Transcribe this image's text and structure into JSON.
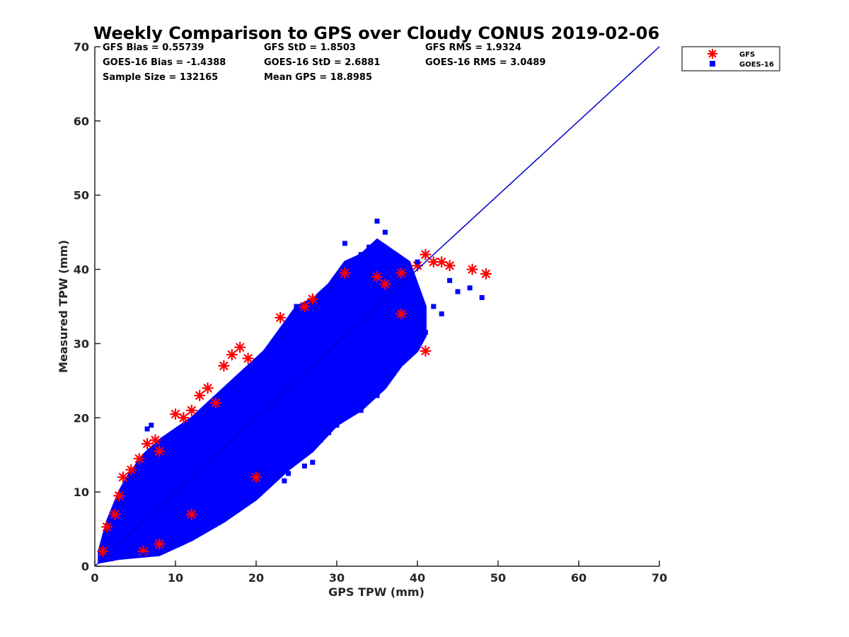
{
  "chart_data": {
    "type": "scatter",
    "title": "Weekly Comparison to GPS over Cloudy CONUS 2019-02-06",
    "xlabel": "GPS TPW (mm)",
    "ylabel": "Measured TPW (mm)",
    "xlim": [
      0,
      70
    ],
    "ylim": [
      0,
      70
    ],
    "xticks": [
      "0",
      "10",
      "20",
      "30",
      "40",
      "50",
      "60",
      "70"
    ],
    "yticks": [
      "0",
      "10",
      "20",
      "30",
      "40",
      "50",
      "60",
      "70"
    ],
    "grid": false,
    "legend_position": "outside top-right",
    "stats": [
      "GFS Bias = 0.55739",
      "GFS StD = 1.8503",
      "GFS RMS = 1.9324",
      "GOES-16 Bias = -1.4388",
      "GOES-16 StD = 2.6881",
      "GOES-16 RMS = 3.0489",
      "Sample Size = 132165",
      "Mean GPS = 18.8985"
    ],
    "reference_line": {
      "x": [
        0,
        70
      ],
      "y": [
        0,
        70
      ],
      "color": "#0000cc"
    },
    "series": [
      {
        "name": "GFS",
        "marker": "asterisk",
        "color": "#ff0000",
        "points": [
          [
            1,
            2
          ],
          [
            1.5,
            5.3
          ],
          [
            2.5,
            7
          ],
          [
            3,
            9.5
          ],
          [
            3.5,
            12
          ],
          [
            4.5,
            13
          ],
          [
            5.5,
            14.5
          ],
          [
            6.5,
            16.5
          ],
          [
            7.5,
            17
          ],
          [
            8,
            15.5
          ],
          [
            10,
            20.5
          ],
          [
            11,
            20
          ],
          [
            12,
            21
          ],
          [
            13,
            23
          ],
          [
            14,
            24
          ],
          [
            15,
            22
          ],
          [
            16,
            27
          ],
          [
            17,
            28.5
          ],
          [
            18,
            29.5
          ],
          [
            19,
            28
          ],
          [
            23,
            33.5
          ],
          [
            26,
            35
          ],
          [
            27,
            36
          ],
          [
            31,
            39.5
          ],
          [
            35,
            39
          ],
          [
            38,
            39.5
          ],
          [
            40,
            40.5
          ],
          [
            41,
            42
          ],
          [
            42,
            41
          ],
          [
            43,
            41
          ],
          [
            44,
            40.5
          ],
          [
            46.8,
            40
          ],
          [
            48.5,
            39.4
          ],
          [
            41,
            29
          ],
          [
            38,
            34
          ],
          [
            36,
            38
          ],
          [
            8,
            3
          ],
          [
            6,
            2
          ],
          [
            12,
            7
          ],
          [
            20,
            12
          ]
        ]
      },
      {
        "name": "GOES-16",
        "marker": "square",
        "color": "#0000ff",
        "points": [
          [
            6.5,
            18.5
          ],
          [
            7,
            19
          ],
          [
            23,
            31
          ],
          [
            25,
            35
          ],
          [
            31,
            43.5
          ],
          [
            34,
            43
          ],
          [
            35,
            46.5
          ],
          [
            36,
            45
          ],
          [
            33,
            42
          ],
          [
            37,
            41
          ],
          [
            40,
            41
          ],
          [
            44,
            38.5
          ],
          [
            46.5,
            37.5
          ],
          [
            48,
            36.2
          ],
          [
            45,
            37
          ],
          [
            43,
            34
          ],
          [
            41,
            31.5
          ],
          [
            40,
            30
          ],
          [
            39,
            29
          ],
          [
            38,
            28
          ],
          [
            37,
            26
          ],
          [
            36,
            25
          ],
          [
            35,
            23
          ],
          [
            33,
            21
          ],
          [
            30,
            19
          ],
          [
            28,
            17
          ],
          [
            27,
            14
          ],
          [
            26,
            13.5
          ],
          [
            29,
            18
          ],
          [
            24,
            12.5
          ],
          [
            23.5,
            11.5
          ],
          [
            16,
            6.5
          ],
          [
            9,
            3.5
          ],
          [
            6,
            1.5
          ],
          [
            2,
            1
          ],
          [
            40,
            33
          ],
          [
            42,
            35
          ]
        ]
      }
    ],
    "dense_regions": [
      {
        "series": "GOES-16",
        "color": "#0000ff",
        "outline": [
          [
            0.5,
            0.5
          ],
          [
            3,
            1
          ],
          [
            8,
            1.5
          ],
          [
            12,
            3.5
          ],
          [
            16,
            6
          ],
          [
            20,
            9
          ],
          [
            24,
            13
          ],
          [
            27,
            15.5
          ],
          [
            30,
            19
          ],
          [
            33,
            21
          ],
          [
            36,
            24
          ],
          [
            38,
            27
          ],
          [
            40,
            29
          ],
          [
            41,
            31
          ],
          [
            41,
            35
          ],
          [
            40,
            38
          ],
          [
            39,
            41
          ],
          [
            37,
            42.5
          ],
          [
            35,
            44
          ],
          [
            33,
            42
          ],
          [
            31,
            41
          ],
          [
            29,
            38
          ],
          [
            27,
            36
          ],
          [
            25,
            35
          ],
          [
            23,
            32
          ],
          [
            21,
            29
          ],
          [
            19,
            27
          ],
          [
            17,
            25
          ],
          [
            14,
            22
          ],
          [
            12,
            20
          ],
          [
            10,
            18.5
          ],
          [
            8,
            17
          ],
          [
            6,
            15
          ],
          [
            4,
            12
          ],
          [
            3,
            10
          ],
          [
            1.5,
            6
          ],
          [
            0.5,
            2
          ]
        ]
      }
    ]
  },
  "legend": {
    "items": [
      {
        "label": "GFS",
        "marker": "asterisk",
        "color": "#ff0000"
      },
      {
        "label": "GOES-16",
        "marker": "square",
        "color": "#0000ff"
      }
    ]
  }
}
